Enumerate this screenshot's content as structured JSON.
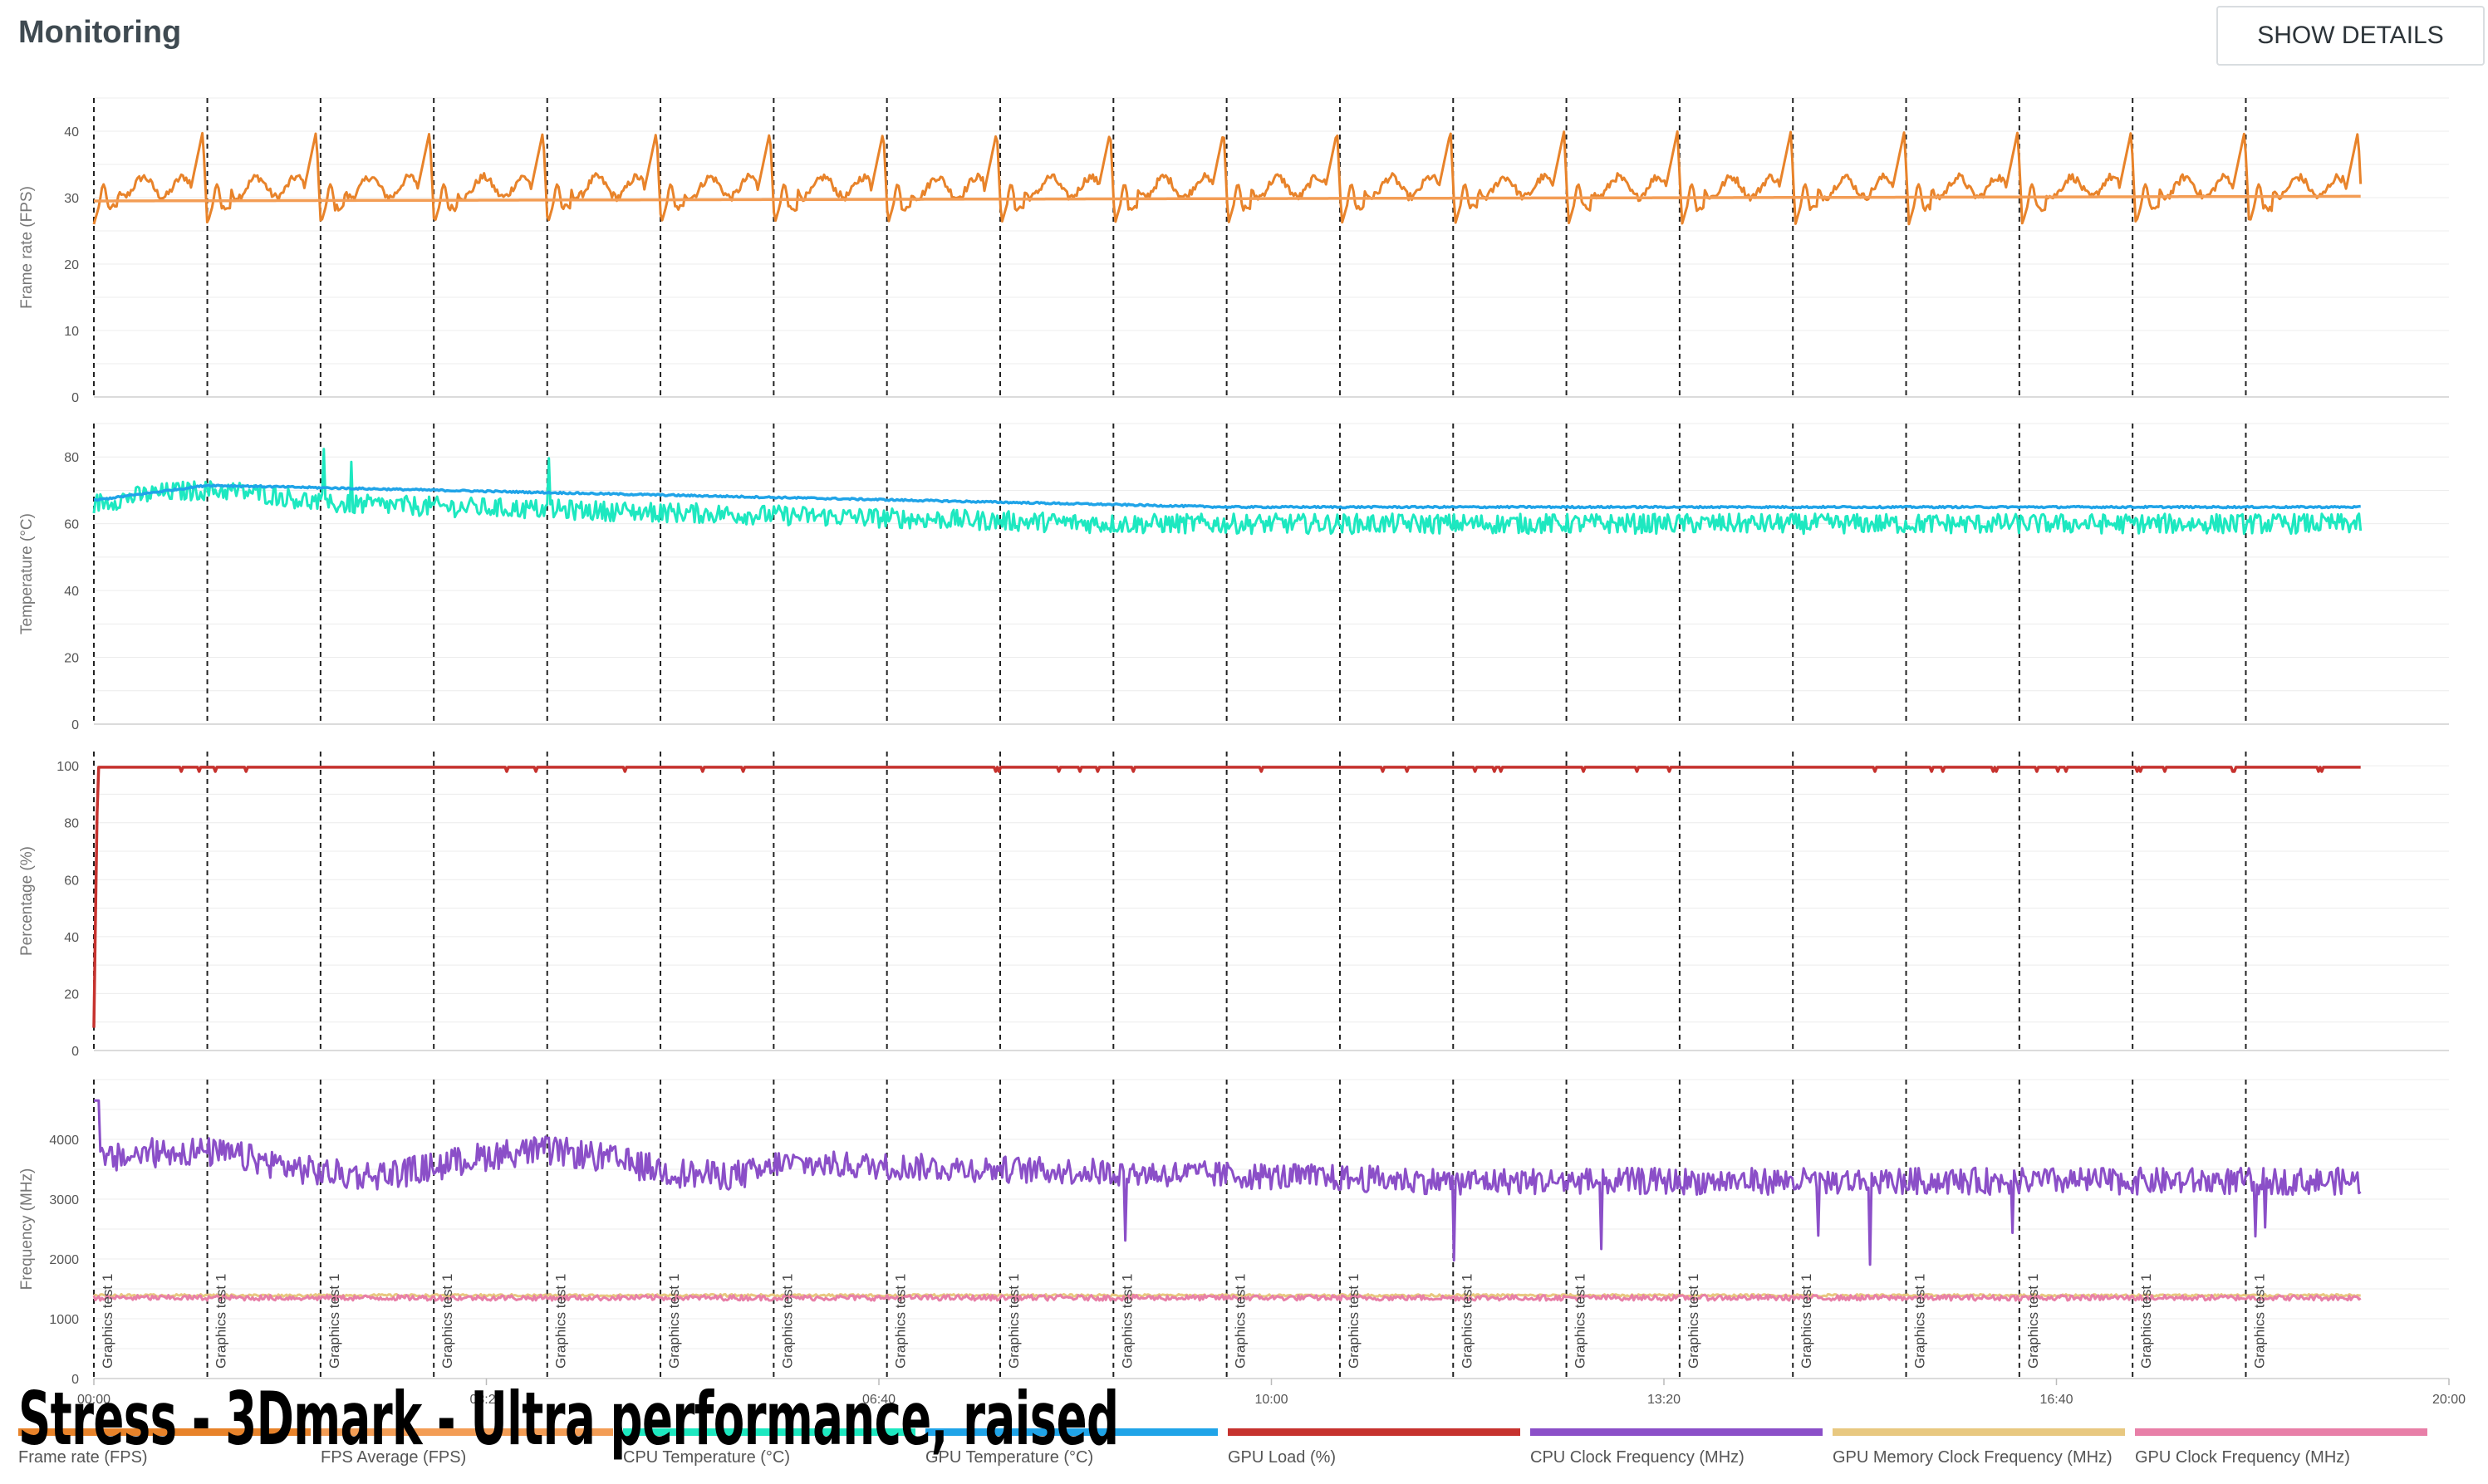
{
  "header": {
    "title": "Monitoring",
    "show_details_label": "SHOW DETAILS"
  },
  "overlay_title": "Stress - 3Dmark - Ultra performance, raised",
  "chart_data": [
    {
      "type": "line",
      "ylabel": "Frame rate (FPS)",
      "ylim": [
        0,
        45
      ],
      "yticks": [
        0,
        10,
        20,
        30,
        40
      ],
      "series": [
        {
          "name": "Frame rate (FPS)",
          "color": "#e8832a",
          "pattern": "fps",
          "base": 29,
          "spike": 40,
          "dip": 26
        },
        {
          "name": "FPS Average (FPS)",
          "color": "#f39d55",
          "pattern": "avg",
          "start": 29.5,
          "end": 30.2
        }
      ]
    },
    {
      "type": "line",
      "ylabel": "Temperature (°C)",
      "ylim": [
        0,
        90
      ],
      "yticks": [
        0,
        20,
        40,
        60,
        80
      ],
      "series": [
        {
          "name": "CPU Temperature (°C)",
          "color": "#1de8c0",
          "pattern": "cputemp",
          "start": 66,
          "end": 60
        },
        {
          "name": "GPU Temperature (°C)",
          "color": "#20a4e8",
          "pattern": "gputemp",
          "start": 67,
          "peak": 71.5,
          "end": 65
        }
      ]
    },
    {
      "type": "line",
      "ylabel": "Percentage (%)",
      "ylim": [
        0,
        105
      ],
      "yticks": [
        0,
        20,
        40,
        60,
        80,
        100
      ],
      "series": [
        {
          "name": "GPU Load (%)",
          "color": "#c6322e",
          "pattern": "load",
          "start": 8,
          "value": 99.5
        }
      ]
    },
    {
      "type": "line",
      "ylabel": "Frequency (MHz)",
      "ylim": [
        0,
        5000
      ],
      "yticks": [
        0,
        1000,
        2000,
        3000,
        4000
      ],
      "series": [
        {
          "name": "CPU Clock Frequency (MHz)",
          "color": "#8b4fc8",
          "pattern": "cpuclk",
          "start": 4650,
          "mid": 3600,
          "end": 3300
        },
        {
          "name": "GPU Memory Clock Frequency (MHz)",
          "color": "#e8c880",
          "pattern": "flat",
          "value": 1390
        },
        {
          "name": "GPU Clock Frequency (MHz)",
          "color": "#e87fa8",
          "pattern": "gpuclk",
          "value": 1350
        }
      ]
    }
  ],
  "x_axis": {
    "ticks": [
      "00:00",
      "03:20",
      "06:40",
      "10:00",
      "13:20",
      "16:40",
      "20:00"
    ],
    "tick_seconds": [
      0,
      200,
      400,
      600,
      800,
      1000,
      1200
    ],
    "range_seconds": [
      0,
      1200
    ],
    "data_end_seconds": 1155
  },
  "markers": {
    "label": "Graphics test 1",
    "start_seconds": [
      0,
      57.8,
      115.5,
      173.2,
      231,
      288.7,
      346.4,
      404.1,
      461.8,
      519.5,
      577.2,
      634.9,
      692.6,
      750.3,
      808,
      865.7,
      923.4,
      981.1,
      1038.8,
      1096.5
    ]
  },
  "legend": [
    {
      "label": "Frame rate (FPS)",
      "color": "#e8832a"
    },
    {
      "label": "FPS Average (FPS)",
      "color": "#f39d55"
    },
    {
      "label": "CPU Temperature (°C)",
      "color": "#1de8c0"
    },
    {
      "label": "GPU Temperature (°C)",
      "color": "#20a4e8"
    },
    {
      "label": "GPU Load (%)",
      "color": "#c6322e"
    },
    {
      "label": "CPU Clock Frequency (MHz)",
      "color": "#8b4fc8"
    },
    {
      "label": "GPU Memory Clock Frequency (MHz)",
      "color": "#e8c880"
    },
    {
      "label": "GPU Clock Frequency (MHz)",
      "color": "#e87fa8"
    }
  ]
}
